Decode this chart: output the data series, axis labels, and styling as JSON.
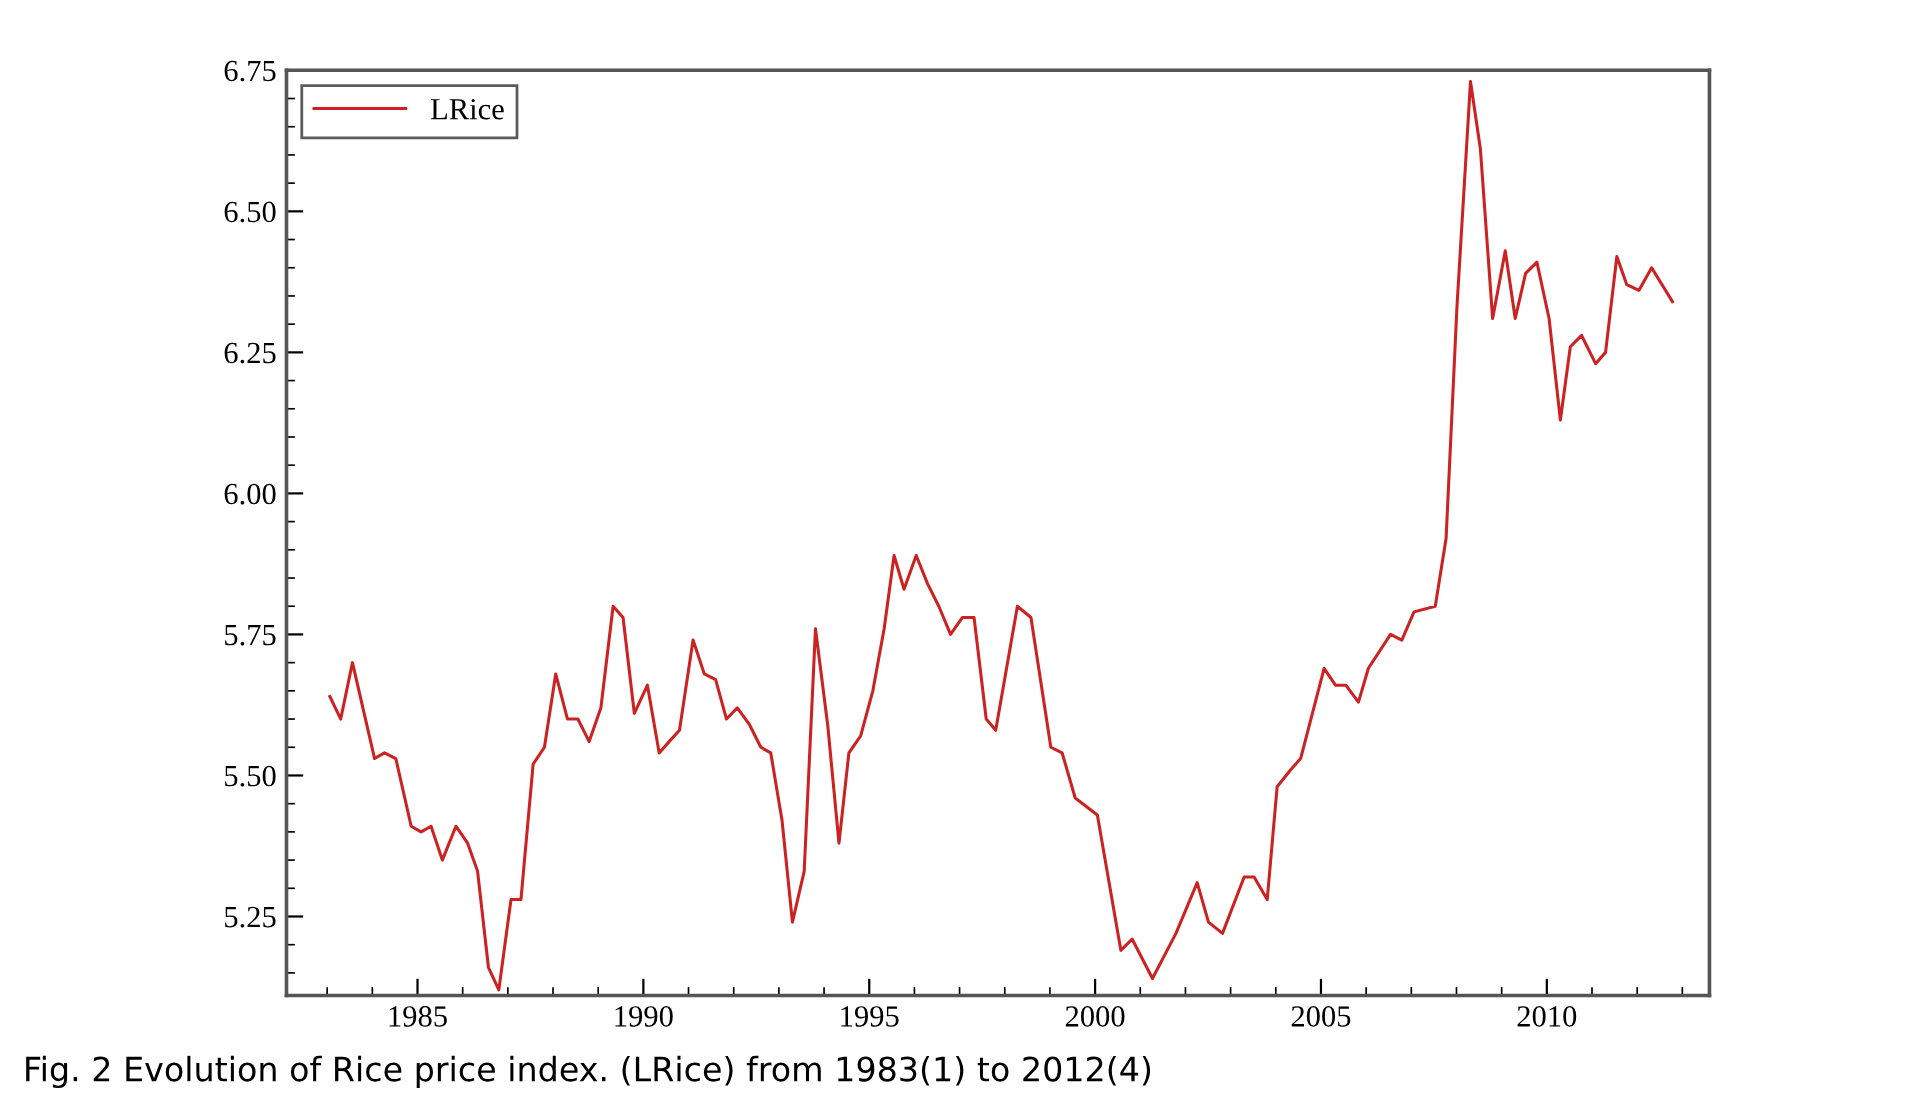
{
  "chart_data": {
    "type": "line",
    "x": [
      1983.06,
      1983.3,
      1983.56,
      1984.05,
      1984.27,
      1984.52,
      1984.86,
      1985.08,
      1985.3,
      1985.55,
      1985.85,
      1986.11,
      1986.33,
      1986.57,
      1986.8,
      1987.07,
      1987.29,
      1987.56,
      1987.81,
      1988.06,
      1988.32,
      1988.55,
      1988.8,
      1989.06,
      1989.33,
      1989.55,
      1989.8,
      1990.09,
      1990.35,
      1990.57,
      1990.8,
      1991.1,
      1991.35,
      1991.6,
      1991.84,
      1992.08,
      1992.35,
      1992.6,
      1992.82,
      1993.07,
      1993.3,
      1993.56,
      1993.81,
      1994.08,
      1994.33,
      1994.55,
      1994.81,
      1995.08,
      1995.33,
      1995.55,
      1995.77,
      1996.04,
      1996.29,
      1996.54,
      1996.8,
      1997.06,
      1997.32,
      1997.59,
      1997.8,
      1998.28,
      1998.58,
      1999.02,
      1999.27,
      1999.56,
      2000.05,
      2000.57,
      2000.82,
      2001.27,
      2001.79,
      2002.26,
      2002.51,
      2002.82,
      2003.3,
      2003.52,
      2003.81,
      2004.03,
      2004.33,
      2004.55,
      2005.07,
      2005.32,
      2005.55,
      2005.83,
      2006.05,
      2006.54,
      2006.79,
      2007.06,
      2007.53,
      2007.77,
      2008.01,
      2008.31,
      2008.53,
      2008.8,
      2009.08,
      2009.3,
      2009.53,
      2009.78,
      2010.05,
      2010.3,
      2010.52,
      2010.77,
      2011.08,
      2011.3,
      2011.55,
      2011.77,
      2012.04,
      2012.32,
      2012.78
    ],
    "series": [
      {
        "name": "LRice",
        "color": "#cc2222",
        "values": [
          5.64,
          5.6,
          5.7,
          5.53,
          5.54,
          5.53,
          5.41,
          5.4,
          5.41,
          5.35,
          5.41,
          5.38,
          5.33,
          5.16,
          5.12,
          5.28,
          5.28,
          5.52,
          5.55,
          5.68,
          5.6,
          5.6,
          5.56,
          5.62,
          5.8,
          5.78,
          5.61,
          5.66,
          5.54,
          5.56,
          5.58,
          5.74,
          5.68,
          5.67,
          5.6,
          5.62,
          5.59,
          5.55,
          5.54,
          5.42,
          5.24,
          5.33,
          5.76,
          5.59,
          5.38,
          5.54,
          5.57,
          5.65,
          5.76,
          5.89,
          5.83,
          5.89,
          5.84,
          5.8,
          5.75,
          5.78,
          5.78,
          5.6,
          5.58,
          5.8,
          5.78,
          5.55,
          5.54,
          5.46,
          5.43,
          5.19,
          5.21,
          5.14,
          5.22,
          5.31,
          5.24,
          5.22,
          5.32,
          5.32,
          5.28,
          5.48,
          5.51,
          5.53,
          5.69,
          5.66,
          5.66,
          5.63,
          5.69,
          5.75,
          5.74,
          5.79,
          5.8,
          5.92,
          6.33,
          6.73,
          6.61,
          6.31,
          6.43,
          6.31,
          6.39,
          6.41,
          6.31,
          6.13,
          6.26,
          6.28,
          6.23,
          6.25,
          6.42,
          6.37,
          6.36,
          6.4,
          6.34
        ]
      }
    ],
    "xlim": [
      1982.1,
      2013.6
    ],
    "xticks": [
      1985,
      1990,
      1995,
      2000,
      2005,
      2010
    ],
    "ylim": [
      5.11,
      6.75
    ],
    "yticks": [
      {
        "value": 5.25,
        "label": "5.25"
      },
      {
        "value": 5.5,
        "label": "5.50"
      },
      {
        "value": 5.75,
        "label": "5.75"
      },
      {
        "value": 6.0,
        "label": "6.00"
      },
      {
        "value": 6.25,
        "label": "6.25"
      },
      {
        "value": 6.5,
        "label": "6.50"
      },
      {
        "value": 6.75,
        "label": "6.75"
      }
    ],
    "legend": "top left",
    "grid": false,
    "marker": "none",
    "line_style": "solid",
    "annotations": [
      "Fig. 2 Evolution of Rice price index. (LRice) from 1983(1) to 2012(4)"
    ]
  }
}
